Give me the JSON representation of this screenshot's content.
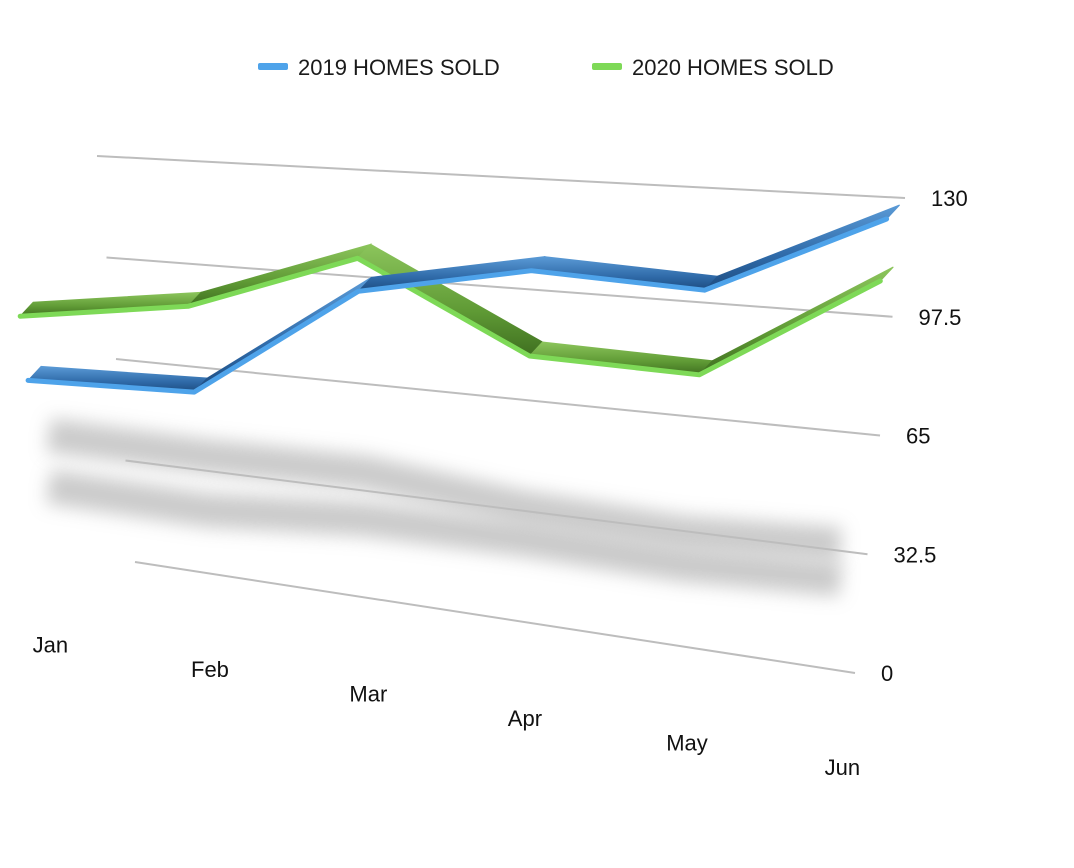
{
  "chart_data": {
    "type": "line",
    "style": "3d-ribbon",
    "categories": [
      "Jan",
      "Feb",
      "Mar",
      "Apr",
      "May",
      "Jun"
    ],
    "series": [
      {
        "name": "2019 HOMES SOLD",
        "values": [
          55,
          57,
          93,
          103,
          101,
          124
        ],
        "color": "#4ea3ea"
      },
      {
        "name": "2020 HOMES SOLD",
        "values": [
          76,
          84,
          103,
          78,
          77,
          107
        ],
        "color": "#7ed957"
      }
    ],
    "y_ticks": [
      "0",
      "32.5",
      "65",
      "97.5",
      "130"
    ],
    "ylim": [
      0,
      130
    ],
    "legend_position": "top-center",
    "grid": true
  }
}
